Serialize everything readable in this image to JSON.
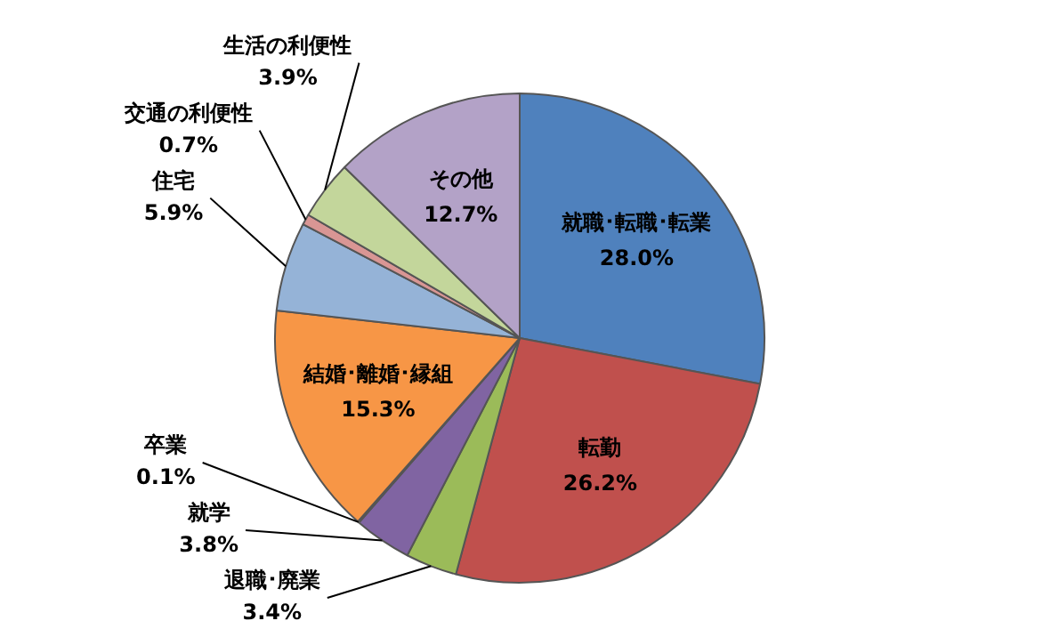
{
  "chart_data": {
    "type": "pie",
    "categories": [
      "就職･転職･転業",
      "転勤",
      "退職･廃業",
      "就学",
      "卒業",
      "結婚･離婚･縁組",
      "住宅",
      "交通の利便性",
      "生活の利便性",
      "その他"
    ],
    "values": [
      28.0,
      26.2,
      3.4,
      3.8,
      0.1,
      15.3,
      5.9,
      0.7,
      3.9,
      12.7
    ],
    "value_labels": [
      "28.0%",
      "26.2%",
      "3.4%",
      "3.8%",
      "0.1%",
      "15.3%",
      "5.9%",
      "0.7%",
      "3.9%",
      "12.7%"
    ],
    "colors": [
      "#4f81bd",
      "#c0504d",
      "#9bbb59",
      "#8064a2",
      "#4bacc6",
      "#f79646",
      "#95b3d7",
      "#d99694",
      "#c3d69b",
      "#b3a2c7"
    ],
    "legend": false
  }
}
